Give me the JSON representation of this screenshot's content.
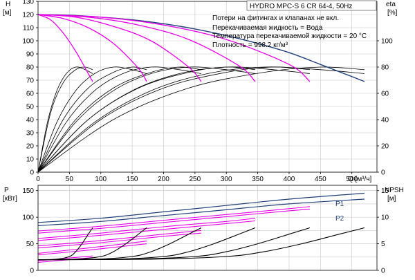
{
  "chart_data": [
    {
      "type": "line",
      "panel": "head",
      "title": "HYDRO MPC-S 6 CR 64-4, 50Hz",
      "notes": [
        "Потери на фитингах и клапанах не вкл.",
        "Перекачиваемая жидкость = Вода",
        "Температура перекачиваемой жидкости = 20 °C",
        "Плотность = 998.2 кг/м³"
      ],
      "xlabel": "Q [м³/ч]",
      "x_ticks": [
        0,
        50,
        100,
        150,
        200,
        250,
        300,
        350,
        400,
        450,
        500
      ],
      "xlim": [
        0,
        540
      ],
      "ylabel_left": [
        "H",
        "[м]"
      ],
      "ylim_left": [
        0,
        130
      ],
      "y_ticks_left": [
        0,
        10,
        20,
        30,
        40,
        50,
        60,
        70,
        80,
        90,
        100,
        110,
        120,
        130
      ],
      "ylabel_right": [
        "eta",
        "[%]"
      ],
      "y_ticks_right": [
        0,
        20,
        40,
        60,
        80,
        100
      ],
      "eta_scale": {
        "eta_100_at_H": 100
      },
      "grid": true,
      "colors": {
        "head_max": "#1f3f7a",
        "head_partial": "#e800e8",
        "eta": "#000000",
        "grid": "#c8c8c8"
      },
      "series": [
        {
          "color": "#1f3f7a",
          "x": [
            0,
            50,
            100,
            150,
            200,
            250,
            300,
            350,
            400,
            450,
            520
          ],
          "y": [
            120,
            119.5,
            118,
            116,
            113,
            109,
            104,
            98,
            91,
            82,
            69
          ]
        },
        {
          "color": "#e800e8",
          "x": [
            0,
            20,
            40,
            60,
            80,
            87
          ],
          "y": [
            120,
            116,
            106,
            92,
            75,
            69
          ]
        },
        {
          "color": "#e800e8",
          "x": [
            0,
            40,
            80,
            120,
            160,
            173
          ],
          "y": [
            120,
            117,
            110,
            98,
            79,
            69
          ]
        },
        {
          "color": "#e800e8",
          "x": [
            0,
            60,
            120,
            180,
            240,
            260
          ],
          "y": [
            120,
            118,
            111,
            100,
            80,
            69
          ]
        },
        {
          "color": "#e800e8",
          "x": [
            0,
            80,
            160,
            240,
            320,
            346
          ],
          "y": [
            120,
            118,
            112,
            101,
            81,
            69
          ]
        },
        {
          "color": "#e800e8",
          "x": [
            0,
            100,
            200,
            300,
            400,
            433
          ],
          "y": [
            120,
            118,
            112,
            101,
            82,
            69
          ]
        }
      ],
      "eta_series": [
        {
          "x": [
            0,
            15,
            30,
            45,
            60,
            75,
            87
          ],
          "y": [
            0,
            38,
            62,
            75,
            80,
            78,
            75
          ]
        },
        {
          "x": [
            0,
            30,
            60,
            90,
            120,
            150,
            173
          ],
          "y": [
            0,
            38,
            62,
            75,
            80,
            78,
            75
          ]
        },
        {
          "x": [
            0,
            45,
            90,
            135,
            180,
            225,
            260
          ],
          "y": [
            0,
            38,
            62,
            75,
            80,
            78,
            75
          ]
        },
        {
          "x": [
            0,
            60,
            120,
            180,
            240,
            300,
            346
          ],
          "y": [
            0,
            38,
            62,
            75,
            80,
            78,
            75
          ]
        },
        {
          "x": [
            0,
            75,
            150,
            225,
            300,
            375,
            433
          ],
          "y": [
            0,
            38,
            62,
            75,
            80,
            78,
            75
          ]
        },
        {
          "x": [
            0,
            90,
            180,
            270,
            360,
            450,
            520
          ],
          "y": [
            0,
            38,
            62,
            75,
            80,
            78,
            75
          ]
        },
        {
          "x": [
            0,
            20,
            40,
            60,
            75,
            87
          ],
          "y": [
            0,
            45,
            68,
            78,
            80,
            78
          ]
        },
        {
          "x": [
            0,
            40,
            80,
            120,
            150,
            173
          ],
          "y": [
            0,
            40,
            64,
            76,
            80,
            78
          ]
        },
        {
          "x": [
            0,
            60,
            120,
            180,
            225,
            260
          ],
          "y": [
            0,
            40,
            64,
            76,
            80,
            78
          ]
        },
        {
          "x": [
            0,
            80,
            160,
            240,
            300,
            346
          ],
          "y": [
            0,
            40,
            64,
            76,
            80,
            78
          ]
        },
        {
          "x": [
            0,
            100,
            200,
            300,
            375,
            433
          ],
          "y": [
            0,
            40,
            64,
            76,
            80,
            78
          ]
        },
        {
          "x": [
            0,
            120,
            240,
            360,
            450,
            520
          ],
          "y": [
            0,
            40,
            64,
            76,
            80,
            78
          ]
        }
      ]
    },
    {
      "type": "line",
      "panel": "power-npsh",
      "xlim": [
        0,
        540
      ],
      "ylabel_left": [
        "P",
        "[кВт]"
      ],
      "ylim_left": [
        0,
        160
      ],
      "y_ticks_left": [
        0,
        50,
        100,
        150
      ],
      "ylabel_right": [
        "NPSH",
        "[м]"
      ],
      "ylim_right": [
        0,
        16
      ],
      "y_ticks_right": [
        0,
        5,
        10,
        15
      ],
      "grid": true,
      "series": [
        {
          "name": "P1",
          "color": "#1f3f7a",
          "x": [
            0,
            100,
            200,
            300,
            400,
            520
          ],
          "y": [
            90,
            98,
            110,
            122,
            134,
            145
          ]
        },
        {
          "name": "P2",
          "color": "#1f3f7a",
          "x": [
            0,
            100,
            200,
            300,
            400,
            520
          ],
          "y": [
            84,
            92,
            103,
            114,
            125,
            134
          ]
        }
      ],
      "power_partial_series": [
        {
          "color": "#e800e8",
          "x": [
            0,
            100,
            200,
            300,
            400,
            433
          ],
          "y": [
            74,
            83,
            94,
            105,
            116,
            120
          ]
        },
        {
          "color": "#e800e8",
          "x": [
            0,
            100,
            200,
            300,
            346
          ],
          "y": [
            60,
            70,
            82,
            92,
            98
          ]
        },
        {
          "color": "#e800e8",
          "x": [
            0,
            100,
            200,
            260
          ],
          "y": [
            46,
            56,
            68,
            75
          ]
        },
        {
          "color": "#e800e8",
          "x": [
            0,
            80,
            173
          ],
          "y": [
            32,
            42,
            55
          ]
        },
        {
          "color": "#e800e8",
          "x": [
            0,
            87
          ],
          "y": [
            18,
            27
          ]
        },
        {
          "color": "#e800e8",
          "x": [
            0,
            100,
            200,
            300,
            400,
            433
          ],
          "y": [
            70,
            79,
            90,
            101,
            112,
            115
          ]
        },
        {
          "color": "#e800e8",
          "x": [
            0,
            100,
            200,
            300,
            346
          ],
          "y": [
            56,
            66,
            77,
            88,
            93
          ]
        },
        {
          "color": "#e800e8",
          "x": [
            0,
            100,
            200,
            260
          ],
          "y": [
            42,
            52,
            64,
            70
          ]
        },
        {
          "color": "#e800e8",
          "x": [
            0,
            80,
            173
          ],
          "y": [
            29,
            38,
            50
          ]
        },
        {
          "color": "#e800e8",
          "x": [
            0,
            87
          ],
          "y": [
            15,
            24
          ]
        }
      ],
      "npsh_series": [
        {
          "x": [
            0,
            30,
            50,
            60,
            70,
            80,
            87
          ],
          "y": [
            2,
            2.1,
            2.6,
            3.5,
            5,
            6.8,
            8
          ]
        },
        {
          "x": [
            0,
            60,
            100,
            120,
            140,
            160,
            173
          ],
          "y": [
            2,
            2.1,
            2.6,
            3.5,
            5,
            6.8,
            8
          ]
        },
        {
          "x": [
            0,
            90,
            150,
            180,
            210,
            240,
            260
          ],
          "y": [
            2,
            2.1,
            2.6,
            3.5,
            5,
            6.8,
            8
          ]
        },
        {
          "x": [
            0,
            120,
            200,
            240,
            280,
            320,
            346
          ],
          "y": [
            2,
            2.1,
            2.6,
            3.5,
            5,
            6.8,
            8
          ]
        },
        {
          "x": [
            0,
            150,
            250,
            300,
            350,
            400,
            433
          ],
          "y": [
            2,
            2.1,
            2.6,
            3.5,
            5,
            6.8,
            8
          ]
        },
        {
          "x": [
            0,
            180,
            300,
            360,
            420,
            480,
            520
          ],
          "y": [
            2,
            2.1,
            2.6,
            3.5,
            5,
            6.8,
            8
          ]
        }
      ]
    }
  ]
}
